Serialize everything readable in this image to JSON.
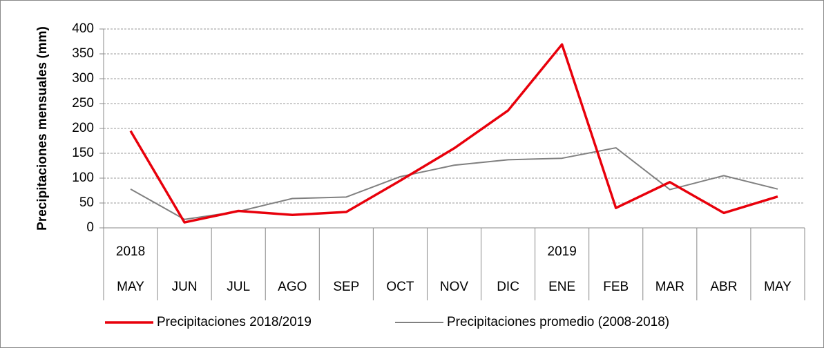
{
  "chart_data": {
    "type": "line",
    "y_label": "Precipitaciones mensuales (mm)",
    "categories": [
      "MAY",
      "JUN",
      "JUL",
      "AGO",
      "SEP",
      "OCT",
      "NOV",
      "DIC",
      "ENE",
      "FEB",
      "MAR",
      "ABR",
      "MAY"
    ],
    "years": [
      "2018",
      null,
      null,
      null,
      null,
      null,
      null,
      null,
      "2019",
      null,
      null,
      null,
      null
    ],
    "series": [
      {
        "name": "Precipitaciones 2018/2019",
        "color": "#e8000b",
        "width": 3.5,
        "values": [
          195,
          11,
          34,
          26,
          32,
          95,
          160,
          236,
          369,
          40,
          92,
          30,
          63
        ]
      },
      {
        "name": "Precipitaciones promedio (2008-2018)",
        "color": "#808080",
        "width": 2,
        "values": [
          78,
          17,
          33,
          59,
          62,
          103,
          126,
          137,
          140,
          161,
          77,
          105,
          78
        ]
      }
    ],
    "ylim": [
      0,
      400
    ],
    "yticks": [
      0,
      50,
      100,
      150,
      200,
      250,
      300,
      350,
      400
    ],
    "grid": true
  }
}
